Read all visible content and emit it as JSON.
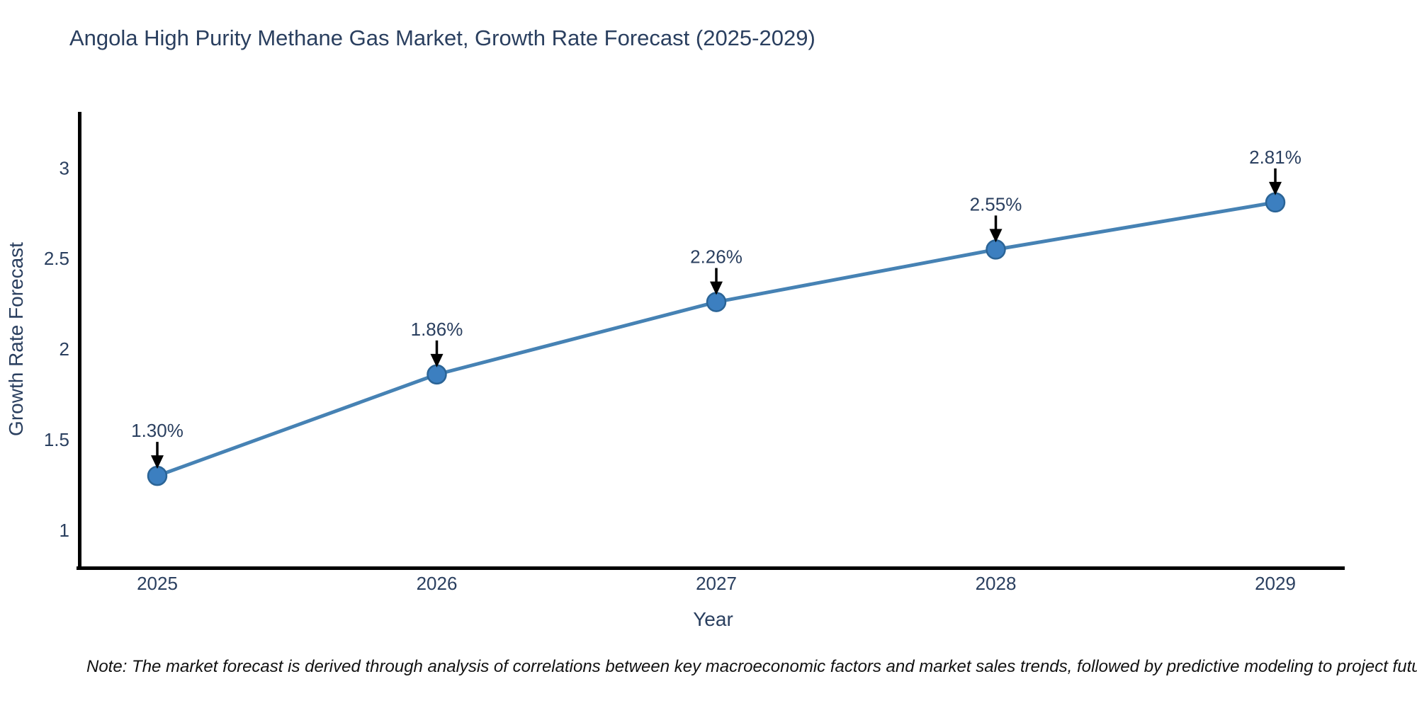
{
  "note": "Note: The market forecast is derived through analysis of correlations between key macroeconomic factors and market sales trends, followed by predictive modeling to project future sales",
  "chart_data": {
    "type": "line",
    "title": "Angola High Purity Methane Gas Market, Growth Rate Forecast (2025-2029)",
    "xlabel": "Year",
    "ylabel": "Growth Rate Forecast",
    "categories": [
      "2025",
      "2026",
      "2027",
      "2028",
      "2029"
    ],
    "values": [
      1.3,
      1.86,
      2.26,
      2.55,
      2.81
    ],
    "point_labels": [
      "1.30%",
      "1.86%",
      "2.26%",
      "2.55%",
      "2.81%"
    ],
    "yticks": [
      1,
      1.5,
      2,
      2.5,
      3
    ],
    "ytick_labels": [
      "1",
      "1.5",
      "2",
      "2.5",
      "3"
    ],
    "ylim": [
      0.8,
      3.31
    ],
    "grid": false,
    "legend": "none",
    "colors": {
      "line": "#4682b4",
      "marker_fill": "#3c7fc0",
      "marker_edge": "#2b6496",
      "axis": "#000000",
      "arrow": "#000000",
      "text": "#2a3f5f",
      "note_text": "#111111"
    }
  }
}
